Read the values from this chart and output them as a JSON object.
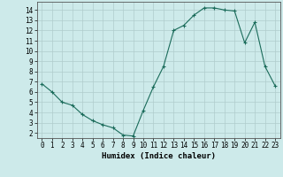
{
  "x": [
    0,
    1,
    2,
    3,
    4,
    5,
    6,
    7,
    8,
    9,
    10,
    11,
    12,
    13,
    14,
    15,
    16,
    17,
    18,
    19,
    20,
    21,
    22,
    23
  ],
  "y": [
    6.8,
    6.0,
    5.0,
    4.7,
    3.8,
    3.2,
    2.8,
    2.5,
    1.8,
    1.7,
    4.2,
    6.5,
    8.5,
    12.0,
    12.5,
    13.5,
    14.2,
    14.2,
    14.0,
    13.9,
    10.8,
    12.8,
    8.5,
    6.6
  ],
  "line_color": "#1a6b5a",
  "marker": "+",
  "marker_size": 3,
  "marker_linewidth": 0.8,
  "bg_color": "#cdeaea",
  "grid_color": "#b0cccc",
  "xlabel": "Humidex (Indice chaleur)",
  "xlim": [
    -0.5,
    23.5
  ],
  "ylim": [
    1.5,
    14.8
  ],
  "yticks": [
    2,
    3,
    4,
    5,
    6,
    7,
    8,
    9,
    10,
    11,
    12,
    13,
    14
  ],
  "xticks": [
    0,
    1,
    2,
    3,
    4,
    5,
    6,
    7,
    8,
    9,
    10,
    11,
    12,
    13,
    14,
    15,
    16,
    17,
    18,
    19,
    20,
    21,
    22,
    23
  ],
  "tick_fontsize": 5.5,
  "label_fontsize": 6.5,
  "linewidth": 0.8
}
